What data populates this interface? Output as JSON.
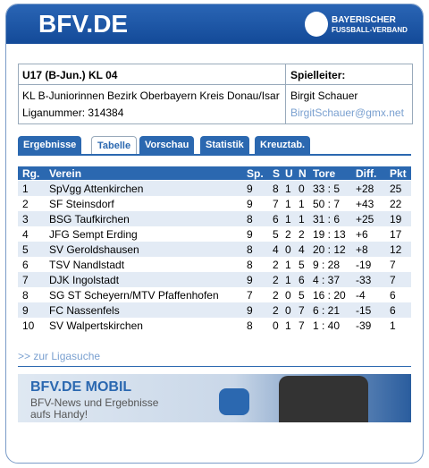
{
  "header": {
    "site": "BFV.DE",
    "org_line1": "BAYERISCHER",
    "org_line2": "FUSSBALL-VERBAND"
  },
  "league": {
    "code": "U17 (B-Jun.) KL 04",
    "leader_label": "Spielleiter:",
    "name": "KL B-Juniorinnen Bezirk Oberbayern Kreis Donau/Isar",
    "number": "Liganummer: 314384",
    "leader_name": "Birgit Schauer",
    "leader_email": "BirgitSchauer@gmx.net"
  },
  "tabs": [
    "Ergebnisse",
    "Tabelle",
    "Vorschau",
    "Statistik",
    "Kreuztab."
  ],
  "table": {
    "columns": [
      "Rg.",
      "Verein",
      "Sp.",
      "S",
      "U",
      "N",
      "Tore",
      "Diff.",
      "Pkt"
    ],
    "rows": [
      [
        "1",
        "SpVgg Attenkirchen",
        "9",
        "8",
        "1",
        "0",
        "33 : 5",
        "+28",
        "25"
      ],
      [
        "2",
        "SF Steinsdorf",
        "9",
        "7",
        "1",
        "1",
        "50 : 7",
        "+43",
        "22"
      ],
      [
        "3",
        "BSG Taufkirchen",
        "8",
        "6",
        "1",
        "1",
        "31 : 6",
        "+25",
        "19"
      ],
      [
        "4",
        "JFG Sempt Erding",
        "9",
        "5",
        "2",
        "2",
        "19 : 13",
        "+6",
        "17"
      ],
      [
        "5",
        "SV Geroldshausen",
        "8",
        "4",
        "0",
        "4",
        "20 : 12",
        "+8",
        "12"
      ],
      [
        "6",
        "TSV Nandlstadt",
        "8",
        "2",
        "1",
        "5",
        "9 : 28",
        "-19",
        "7"
      ],
      [
        "7",
        "DJK Ingolstadt",
        "9",
        "2",
        "1",
        "6",
        "4 : 37",
        "-33",
        "7"
      ],
      [
        "8",
        "SG ST Scheyern/MTV Pfaffenhofen",
        "7",
        "2",
        "0",
        "5",
        "16 : 20",
        "-4",
        "6"
      ],
      [
        "9",
        "FC Nassenfels",
        "9",
        "2",
        "0",
        "7",
        "6 : 21",
        "-15",
        "6"
      ],
      [
        "10",
        "SV Walpertskirchen",
        "8",
        "0",
        "1",
        "7",
        "1 : 40",
        "-39",
        "1"
      ]
    ]
  },
  "link": ">> zur Ligasuche",
  "banner": {
    "title": "BFV.DE MOBIL",
    "line1": "BFV-News und Ergebnisse",
    "line2": "aufs Handy!"
  }
}
